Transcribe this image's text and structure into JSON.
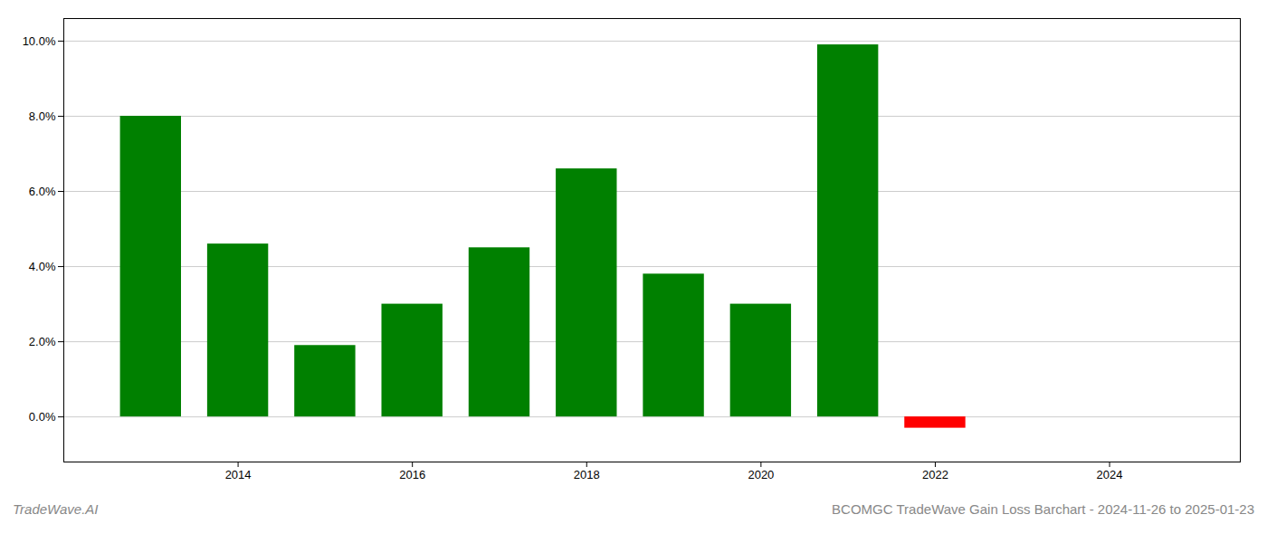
{
  "chart_data": {
    "type": "bar",
    "title": "BCOMGC TradeWave Gain Loss Barchart - 2024-11-26 to 2025-01-23",
    "annotations": [
      "TradeWave.AI"
    ],
    "x": [
      2013,
      2014,
      2015,
      2016,
      2017,
      2018,
      2019,
      2020,
      2021,
      2022,
      2023
    ],
    "values": [
      0.08,
      0.046,
      0.019,
      0.03,
      0.045,
      0.066,
      0.038,
      0.03,
      0.099,
      -0.003,
      0.0
    ],
    "colors": [
      "#008000",
      "#008000",
      "#008000",
      "#008000",
      "#008000",
      "#008000",
      "#008000",
      "#008000",
      "#008000",
      "#ff0000",
      "#008000"
    ],
    "xlim": [
      2012.0,
      2025.5
    ],
    "xticks": [
      2014,
      2016,
      2018,
      2020,
      2022,
      2024
    ],
    "ylim": [
      -0.012,
      0.106
    ],
    "yticks": [
      {
        "value": 0.0,
        "label": "0.0%"
      },
      {
        "value": 0.02,
        "label": "2.0%"
      },
      {
        "value": 0.04,
        "label": "4.0%"
      },
      {
        "value": 0.06,
        "label": "6.0%"
      },
      {
        "value": 0.08,
        "label": "8.0%"
      },
      {
        "value": 0.1,
        "label": "10.0%"
      }
    ],
    "grid": true
  }
}
